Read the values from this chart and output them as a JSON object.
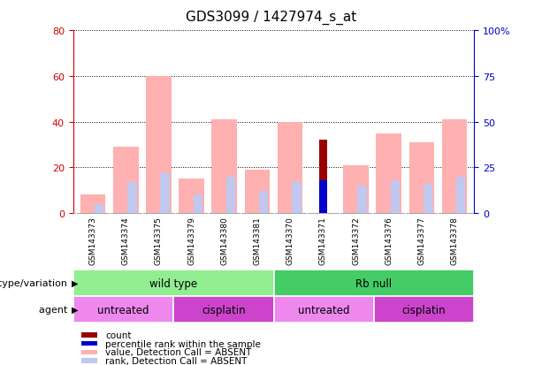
{
  "title": "GDS3099 / 1427974_s_at",
  "samples": [
    "GSM143373",
    "GSM143374",
    "GSM143375",
    "GSM143379",
    "GSM143380",
    "GSM143381",
    "GSM143370",
    "GSM143371",
    "GSM143372",
    "GSM143376",
    "GSM143377",
    "GSM143378"
  ],
  "value_absent": [
    8,
    29,
    60,
    15,
    41,
    19,
    40,
    0,
    21,
    35,
    31,
    41
  ],
  "rank_absent": [
    5,
    17,
    22,
    10,
    20,
    12,
    17,
    0,
    15,
    18,
    16,
    20
  ],
  "count": [
    0,
    0,
    0,
    0,
    0,
    0,
    0,
    32,
    0,
    0,
    0,
    0
  ],
  "percentile": [
    0,
    0,
    0,
    0,
    0,
    0,
    0,
    18,
    0,
    0,
    0,
    0
  ],
  "color_value_absent": "#ffb0b0",
  "color_rank_absent": "#c0c8f0",
  "color_count": "#990000",
  "color_percentile": "#0000cc",
  "genotype_groups": [
    {
      "label": "wild type",
      "start": 0,
      "end": 6,
      "color": "#90ee90"
    },
    {
      "label": "Rb null",
      "start": 6,
      "end": 12,
      "color": "#44cc66"
    }
  ],
  "agent_groups": [
    {
      "label": "untreated",
      "start": 0,
      "end": 3,
      "color": "#ee88ee"
    },
    {
      "label": "cisplatin",
      "start": 3,
      "end": 6,
      "color": "#cc44cc"
    },
    {
      "label": "untreated",
      "start": 6,
      "end": 9,
      "color": "#ee88ee"
    },
    {
      "label": "cisplatin",
      "start": 9,
      "end": 12,
      "color": "#cc44cc"
    }
  ],
  "ylim_left": [
    0,
    80
  ],
  "ylim_right": [
    0,
    100
  ],
  "yticks_left": [
    0,
    20,
    40,
    60,
    80
  ],
  "yticks_right": [
    0,
    25,
    50,
    75,
    100
  ],
  "ylabel_left_color": "#cc0000",
  "ylabel_right_color": "#0000cc",
  "bar_width": 0.35,
  "background_color": "#ffffff",
  "grid_color": "#000000",
  "label_count": "count",
  "label_percentile": "percentile rank within the sample",
  "label_value_absent": "value, Detection Call = ABSENT",
  "label_rank_absent": "rank, Detection Call = ABSENT",
  "genotype_label": "genotype/variation",
  "agent_label": "agent"
}
